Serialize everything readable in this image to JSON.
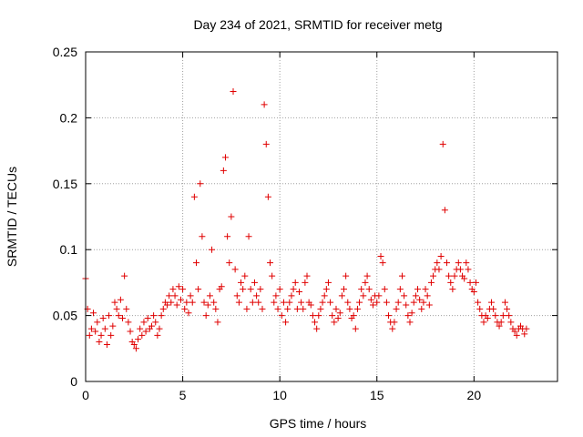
{
  "chart_data": {
    "type": "scatter",
    "title": "Day 234 of 2021, SRMTID for receiver metg",
    "xlabel": "GPS time / hours",
    "ylabel": "SRMTID / TECUs",
    "xlim": [
      0,
      24.3
    ],
    "ylim": [
      0,
      0.25
    ],
    "x_ticks": [
      0,
      5,
      10,
      15,
      20
    ],
    "x_tick_labels": [
      "0",
      "5",
      "10",
      "15",
      "20"
    ],
    "y_ticks": [
      0,
      0.05,
      0.1,
      0.15,
      0.2,
      0.25
    ],
    "y_tick_labels": [
      "0",
      "0.05",
      "0.1",
      "0.15",
      "0.2",
      "0.25"
    ],
    "grid": true,
    "marker": "plus",
    "color": "#e00000",
    "series": [
      {
        "name": "SRMTID",
        "x": [
          0.0,
          0.1,
          0.2,
          0.3,
          0.4,
          0.5,
          0.6,
          0.7,
          0.8,
          0.9,
          1.0,
          1.1,
          1.2,
          1.3,
          1.4,
          1.5,
          1.6,
          1.7,
          1.8,
          1.9,
          2.0,
          2.1,
          2.2,
          2.3,
          2.4,
          2.5,
          2.6,
          2.7,
          2.8,
          2.9,
          3.0,
          3.1,
          3.2,
          3.3,
          3.4,
          3.5,
          3.6,
          3.7,
          3.8,
          3.9,
          4.0,
          4.1,
          4.2,
          4.3,
          4.4,
          4.5,
          4.6,
          4.7,
          4.8,
          4.9,
          5.0,
          5.1,
          5.2,
          5.3,
          5.4,
          5.5,
          5.6,
          5.7,
          5.8,
          5.9,
          6.0,
          6.1,
          6.2,
          6.3,
          6.4,
          6.5,
          6.6,
          6.7,
          6.8,
          6.9,
          7.0,
          7.1,
          7.2,
          7.3,
          7.4,
          7.5,
          7.6,
          7.7,
          7.8,
          7.9,
          8.0,
          8.1,
          8.2,
          8.3,
          8.4,
          8.5,
          8.6,
          8.7,
          8.8,
          8.9,
          9.0,
          9.1,
          9.2,
          9.3,
          9.4,
          9.5,
          9.6,
          9.7,
          9.8,
          9.9,
          10.0,
          10.1,
          10.2,
          10.3,
          10.4,
          10.5,
          10.6,
          10.7,
          10.8,
          10.9,
          11.0,
          11.1,
          11.2,
          11.3,
          11.4,
          11.5,
          11.6,
          11.7,
          11.8,
          11.9,
          12.0,
          12.1,
          12.2,
          12.3,
          12.4,
          12.5,
          12.6,
          12.7,
          12.8,
          12.9,
          13.0,
          13.1,
          13.2,
          13.3,
          13.4,
          13.5,
          13.6,
          13.7,
          13.8,
          13.9,
          14.0,
          14.1,
          14.2,
          14.3,
          14.4,
          14.5,
          14.6,
          14.7,
          14.8,
          14.9,
          15.0,
          15.1,
          15.2,
          15.3,
          15.4,
          15.5,
          15.6,
          15.7,
          15.8,
          15.9,
          16.0,
          16.1,
          16.2,
          16.3,
          16.4,
          16.5,
          16.6,
          16.7,
          16.8,
          16.9,
          17.0,
          17.1,
          17.2,
          17.3,
          17.4,
          17.5,
          17.6,
          17.7,
          17.8,
          17.9,
          18.0,
          18.1,
          18.2,
          18.3,
          18.4,
          18.5,
          18.6,
          18.7,
          18.8,
          18.9,
          19.0,
          19.1,
          19.2,
          19.3,
          19.4,
          19.5,
          19.6,
          19.7,
          19.8,
          19.9,
          20.0,
          20.1,
          20.2,
          20.3,
          20.4,
          20.5,
          20.6,
          20.7,
          20.8,
          20.9,
          21.0,
          21.1,
          21.2,
          21.3,
          21.4,
          21.5,
          21.6,
          21.7,
          21.8,
          21.9,
          22.0,
          22.1,
          22.2,
          22.3,
          22.4,
          22.5,
          22.6,
          22.7
        ],
        "y": [
          0.078,
          0.055,
          0.035,
          0.04,
          0.052,
          0.038,
          0.045,
          0.03,
          0.035,
          0.048,
          0.04,
          0.028,
          0.05,
          0.035,
          0.042,
          0.06,
          0.055,
          0.05,
          0.062,
          0.048,
          0.08,
          0.055,
          0.045,
          0.038,
          0.03,
          0.028,
          0.025,
          0.032,
          0.04,
          0.035,
          0.045,
          0.038,
          0.048,
          0.04,
          0.042,
          0.05,
          0.045,
          0.035,
          0.04,
          0.05,
          0.055,
          0.06,
          0.058,
          0.065,
          0.06,
          0.07,
          0.065,
          0.058,
          0.072,
          0.062,
          0.07,
          0.055,
          0.06,
          0.052,
          0.065,
          0.06,
          0.14,
          0.09,
          0.07,
          0.15,
          0.11,
          0.06,
          0.05,
          0.058,
          0.065,
          0.1,
          0.06,
          0.055,
          0.045,
          0.07,
          0.072,
          0.16,
          0.17,
          0.11,
          0.09,
          0.125,
          0.22,
          0.085,
          0.065,
          0.06,
          0.075,
          0.07,
          0.08,
          0.055,
          0.11,
          0.07,
          0.06,
          0.075,
          0.065,
          0.06,
          0.07,
          0.055,
          0.21,
          0.18,
          0.14,
          0.09,
          0.08,
          0.06,
          0.065,
          0.055,
          0.07,
          0.05,
          0.06,
          0.045,
          0.055,
          0.06,
          0.065,
          0.07,
          0.075,
          0.055,
          0.068,
          0.06,
          0.055,
          0.075,
          0.08,
          0.06,
          0.058,
          0.05,
          0.045,
          0.04,
          0.05,
          0.055,
          0.06,
          0.065,
          0.07,
          0.075,
          0.06,
          0.05,
          0.045,
          0.055,
          0.048,
          0.052,
          0.065,
          0.07,
          0.08,
          0.06,
          0.055,
          0.048,
          0.05,
          0.04,
          0.055,
          0.06,
          0.07,
          0.065,
          0.075,
          0.08,
          0.07,
          0.062,
          0.058,
          0.065,
          0.06,
          0.065,
          0.095,
          0.09,
          0.07,
          0.06,
          0.05,
          0.045,
          0.04,
          0.045,
          0.055,
          0.06,
          0.07,
          0.08,
          0.065,
          0.058,
          0.05,
          0.045,
          0.052,
          0.06,
          0.065,
          0.07,
          0.062,
          0.055,
          0.06,
          0.07,
          0.065,
          0.058,
          0.075,
          0.08,
          0.085,
          0.09,
          0.085,
          0.095,
          0.18,
          0.13,
          0.09,
          0.08,
          0.075,
          0.07,
          0.08,
          0.085,
          0.09,
          0.085,
          0.08,
          0.078,
          0.09,
          0.085,
          0.075,
          0.07,
          0.068,
          0.075,
          0.06,
          0.055,
          0.05,
          0.045,
          0.05,
          0.048,
          0.055,
          0.06,
          0.055,
          0.05,
          0.045,
          0.042,
          0.045,
          0.05,
          0.06,
          0.055,
          0.05,
          0.045,
          0.04,
          0.038,
          0.035,
          0.04,
          0.042,
          0.04,
          0.036,
          0.04
        ]
      }
    ]
  }
}
